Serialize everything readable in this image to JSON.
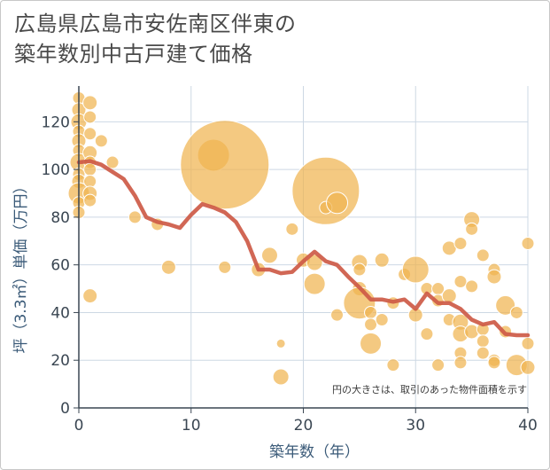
{
  "title_lines": [
    "広島県広島市安佐南区伴東の",
    "築年数別中古戸建て価格"
  ],
  "colors": {
    "bubble": "#f0b450",
    "line": "#cd5a46",
    "grid": "#cdd8e4",
    "axis": "#3a4652"
  },
  "chart_data": {
    "type": "scatter",
    "title": "広島県広島市安佐南区伴東の築年数別中古戸建て価格",
    "xlabel": "築年数（年）",
    "ylabel": "坪（3.3㎡）単価（万円）",
    "xlim": [
      0,
      40
    ],
    "ylim": [
      0,
      135
    ],
    "xticks": [
      0,
      10,
      20,
      30,
      40
    ],
    "yticks": [
      0,
      20,
      40,
      60,
      80,
      100,
      120
    ],
    "note": "円の大きさは、取引のあった物件面積を示す",
    "grid": true,
    "series": [
      {
        "kind": "bubble",
        "points": [
          {
            "x": 0,
            "y": 130,
            "r": 7
          },
          {
            "x": 0,
            "y": 125,
            "r": 8
          },
          {
            "x": 0,
            "y": 120,
            "r": 9
          },
          {
            "x": 0,
            "y": 116,
            "r": 7
          },
          {
            "x": 0,
            "y": 112,
            "r": 8
          },
          {
            "x": 0,
            "y": 108,
            "r": 7
          },
          {
            "x": 0,
            "y": 103,
            "r": 10
          },
          {
            "x": 0,
            "y": 98,
            "r": 7
          },
          {
            "x": 0,
            "y": 95,
            "r": 8
          },
          {
            "x": 0,
            "y": 90,
            "r": 12
          },
          {
            "x": 0,
            "y": 86,
            "r": 7
          },
          {
            "x": 0,
            "y": 82,
            "r": 7
          },
          {
            "x": 1,
            "y": 128,
            "r": 8
          },
          {
            "x": 1,
            "y": 122,
            "r": 7
          },
          {
            "x": 1,
            "y": 115,
            "r": 7
          },
          {
            "x": 1,
            "y": 107,
            "r": 8
          },
          {
            "x": 1,
            "y": 103,
            "r": 7
          },
          {
            "x": 1,
            "y": 100,
            "r": 7
          },
          {
            "x": 1,
            "y": 95,
            "r": 7
          },
          {
            "x": 1,
            "y": 90,
            "r": 8
          },
          {
            "x": 1,
            "y": 87,
            "r": 7
          },
          {
            "x": 1,
            "y": 47,
            "r": 8
          },
          {
            "x": 2,
            "y": 112,
            "r": 7
          },
          {
            "x": 3,
            "y": 103,
            "r": 7
          },
          {
            "x": 5,
            "y": 80,
            "r": 7
          },
          {
            "x": 7,
            "y": 77,
            "r": 7
          },
          {
            "x": 8,
            "y": 59,
            "r": 8
          },
          {
            "x": 12,
            "y": 106,
            "r": 18
          },
          {
            "x": 13,
            "y": 102,
            "r": 50
          },
          {
            "x": 13,
            "y": 59,
            "r": 7
          },
          {
            "x": 16,
            "y": 58,
            "r": 8
          },
          {
            "x": 17,
            "y": 64,
            "r": 9
          },
          {
            "x": 18,
            "y": 27,
            "r": 5
          },
          {
            "x": 18,
            "y": 13,
            "r": 9
          },
          {
            "x": 19,
            "y": 75,
            "r": 7
          },
          {
            "x": 20,
            "y": 62,
            "r": 8
          },
          {
            "x": 21,
            "y": 61,
            "r": 9
          },
          {
            "x": 21,
            "y": 52,
            "r": 12
          },
          {
            "x": 22,
            "y": 91,
            "r": 38
          },
          {
            "x": 22,
            "y": 84,
            "r": 7
          },
          {
            "x": 23,
            "y": 86,
            "r": 12
          },
          {
            "x": 23,
            "y": 39,
            "r": 7
          },
          {
            "x": 25,
            "y": 61,
            "r": 9
          },
          {
            "x": 25,
            "y": 58,
            "r": 7
          },
          {
            "x": 25,
            "y": 50,
            "r": 8
          },
          {
            "x": 25,
            "y": 44,
            "r": 18
          },
          {
            "x": 26,
            "y": 40,
            "r": 7
          },
          {
            "x": 26,
            "y": 35,
            "r": 7
          },
          {
            "x": 26,
            "y": 27,
            "r": 12
          },
          {
            "x": 27,
            "y": 62,
            "r": 8
          },
          {
            "x": 27,
            "y": 37,
            "r": 7
          },
          {
            "x": 28,
            "y": 44,
            "r": 7
          },
          {
            "x": 28,
            "y": 18,
            "r": 7
          },
          {
            "x": 29,
            "y": 56,
            "r": 7
          },
          {
            "x": 30,
            "y": 58,
            "r": 15
          },
          {
            "x": 30,
            "y": 39,
            "r": 8
          },
          {
            "x": 31,
            "y": 50,
            "r": 7
          },
          {
            "x": 31,
            "y": 31,
            "r": 7
          },
          {
            "x": 32,
            "y": 50,
            "r": 7
          },
          {
            "x": 32,
            "y": 45,
            "r": 7
          },
          {
            "x": 32,
            "y": 18,
            "r": 7
          },
          {
            "x": 33,
            "y": 67,
            "r": 8
          },
          {
            "x": 33,
            "y": 47,
            "r": 8
          },
          {
            "x": 33,
            "y": 37,
            "r": 7
          },
          {
            "x": 34,
            "y": 69,
            "r": 7
          },
          {
            "x": 34,
            "y": 53,
            "r": 7
          },
          {
            "x": 34,
            "y": 36,
            "r": 9
          },
          {
            "x": 34,
            "y": 31,
            "r": 9
          },
          {
            "x": 34,
            "y": 23,
            "r": 7
          },
          {
            "x": 34,
            "y": 19,
            "r": 7
          },
          {
            "x": 35,
            "y": 79,
            "r": 9
          },
          {
            "x": 35,
            "y": 75,
            "r": 7
          },
          {
            "x": 35,
            "y": 51,
            "r": 7
          },
          {
            "x": 35,
            "y": 32,
            "r": 8
          },
          {
            "x": 36,
            "y": 64,
            "r": 7
          },
          {
            "x": 36,
            "y": 33,
            "r": 7
          },
          {
            "x": 36,
            "y": 28,
            "r": 7
          },
          {
            "x": 36,
            "y": 23,
            "r": 7
          },
          {
            "x": 37,
            "y": 58,
            "r": 7
          },
          {
            "x": 37,
            "y": 55,
            "r": 8
          },
          {
            "x": 37,
            "y": 20,
            "r": 7
          },
          {
            "x": 37,
            "y": 19,
            "r": 7
          },
          {
            "x": 38,
            "y": 43,
            "r": 11
          },
          {
            "x": 38,
            "y": 32,
            "r": 7
          },
          {
            "x": 39,
            "y": 40,
            "r": 7
          },
          {
            "x": 39,
            "y": 18,
            "r": 12
          },
          {
            "x": 40,
            "y": 69,
            "r": 7
          },
          {
            "x": 40,
            "y": 27,
            "r": 7
          },
          {
            "x": 40,
            "y": 17,
            "r": 8
          }
        ]
      },
      {
        "kind": "line",
        "x": [
          0,
          1,
          2,
          3,
          4,
          5,
          6,
          7,
          8,
          9,
          10,
          11,
          12,
          13,
          14,
          15,
          16,
          17,
          18,
          19,
          20,
          21,
          22,
          23,
          24,
          25,
          26,
          27,
          28,
          29,
          30,
          31,
          32,
          33,
          34,
          35,
          36,
          37,
          38,
          39,
          40
        ],
        "values": [
          103,
          103.5,
          102,
          99,
          96,
          89,
          80,
          78,
          77,
          75.5,
          81,
          85.5,
          84,
          82,
          78,
          70,
          58,
          58,
          56.5,
          57,
          61.5,
          65.5,
          61.5,
          60,
          55,
          50.5,
          45.5,
          45.5,
          44.5,
          45.5,
          41.5,
          48,
          44,
          44,
          41.5,
          37,
          35,
          36,
          31,
          30.5,
          30.5
        ]
      }
    ]
  }
}
